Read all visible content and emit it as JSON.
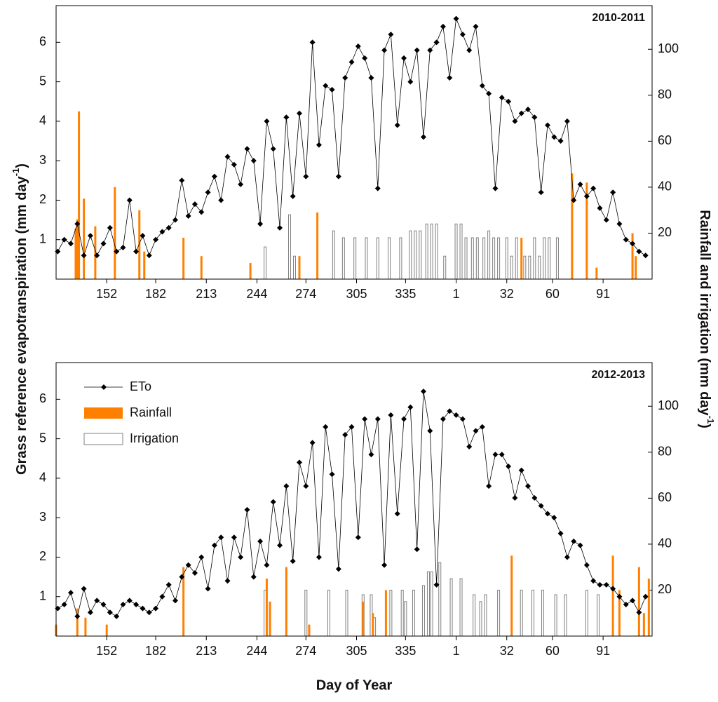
{
  "axis_labels": {
    "x": "Day of Year",
    "y": {
      "main": "Grass reference evapotranspiration (mm day",
      "sup": "-1",
      "end": ")"
    },
    "y2": {
      "main": "Rainfall and irrigation (mm day",
      "sup": "-1",
      "end": ")"
    }
  },
  "chart_data": [
    {
      "type": "combo",
      "panel_label": "2010-2011",
      "xlim": [
        121,
        486
      ],
      "ylim": [
        0,
        6.93
      ],
      "y2lim": [
        0,
        119
      ],
      "xticks": [
        152,
        182,
        213,
        244,
        274,
        305,
        335,
        {
          "value": 366,
          "label": "1"
        },
        {
          "value": 397,
          "label": "32"
        },
        {
          "value": 425,
          "label": "60"
        },
        {
          "value": 456,
          "label": "91"
        }
      ],
      "yticks": [
        1,
        2,
        3,
        4,
        5,
        6
      ],
      "y2ticks": [
        20,
        40,
        60,
        80,
        100
      ],
      "series": [
        {
          "type": "bar",
          "style": "outline",
          "color": "#808080",
          "axis": "y2",
          "x": [
            249,
            264,
            267,
            291,
            297,
            304,
            311,
            318,
            325,
            332,
            338,
            341,
            344,
            348,
            351,
            354,
            359,
            366,
            369,
            372,
            376,
            379,
            383,
            386,
            389,
            392,
            397,
            400,
            403,
            408,
            411,
            414,
            417,
            420,
            423,
            428
          ],
          "values": [
            14,
            28,
            10,
            21,
            18,
            18,
            18,
            18,
            18,
            18,
            21,
            21,
            21,
            24,
            24,
            24,
            10,
            24,
            24,
            18,
            18,
            18,
            18,
            21,
            18,
            18,
            18,
            10,
            18,
            10,
            10,
            18,
            10,
            18,
            18,
            18
          ]
        },
        {
          "type": "bar",
          "style": "fill",
          "color": "#ff8000",
          "axis": "y2",
          "x": [
            133,
            134,
            135,
            138,
            145,
            157,
            172,
            175,
            199,
            210,
            240,
            270,
            281,
            406,
            437,
            446,
            452,
            474,
            476
          ],
          "values": [
            22,
            26,
            73,
            35,
            23,
            40,
            30,
            12,
            18,
            10,
            7,
            10,
            29,
            18,
            46,
            42,
            5,
            20,
            10
          ]
        },
        {
          "type": "line",
          "color": "#000000",
          "x": [
            122,
            126,
            130,
            134,
            138,
            142,
            146,
            150,
            154,
            158,
            162,
            166,
            170,
            174,
            178,
            182,
            186,
            190,
            194,
            198,
            202,
            206,
            210,
            214,
            218,
            222,
            226,
            230,
            234,
            238,
            242,
            246,
            250,
            254,
            258,
            262,
            266,
            270,
            274,
            278,
            282,
            286,
            290,
            294,
            298,
            302,
            306,
            310,
            314,
            318,
            322,
            326,
            330,
            334,
            338,
            342,
            346,
            350,
            354,
            358,
            362,
            366,
            370,
            374,
            378,
            382,
            386,
            390,
            394,
            398,
            402,
            406,
            410,
            414,
            418,
            422,
            426,
            430,
            434,
            438,
            442,
            446,
            450,
            454,
            458,
            462,
            466,
            470,
            474,
            478,
            482
          ],
          "values": [
            0.7,
            1.0,
            0.9,
            1.4,
            0.6,
            1.1,
            0.6,
            0.9,
            1.3,
            0.7,
            0.8,
            2.0,
            0.7,
            1.1,
            0.6,
            1.0,
            1.2,
            1.3,
            1.5,
            2.5,
            1.6,
            1.9,
            1.7,
            2.2,
            2.6,
            2.0,
            3.1,
            2.9,
            2.4,
            3.3,
            3.0,
            1.4,
            4.0,
            3.3,
            1.3,
            4.1,
            2.1,
            4.2,
            2.6,
            6.0,
            3.4,
            4.9,
            4.8,
            2.6,
            5.1,
            5.5,
            5.9,
            5.6,
            5.1,
            2.3,
            5.8,
            6.2,
            3.9,
            5.6,
            5.0,
            5.8,
            3.6,
            5.8,
            6.0,
            6.4,
            5.1,
            6.6,
            6.2,
            5.8,
            6.4,
            4.9,
            4.7,
            2.3,
            4.6,
            4.5,
            4.0,
            4.2,
            4.3,
            4.1,
            2.2,
            3.9,
            3.6,
            3.5,
            4.0,
            2.0,
            2.4,
            2.1,
            2.3,
            1.8,
            1.5,
            2.2,
            1.4,
            1.0,
            0.9,
            0.7,
            0.6
          ]
        }
      ]
    },
    {
      "type": "combo",
      "panel_label": "2012-2013",
      "legend": "upper left",
      "xlim": [
        121,
        486
      ],
      "ylim": [
        0,
        6.93
      ],
      "y2lim": [
        0,
        119
      ],
      "xticks": [
        152,
        182,
        213,
        244,
        274,
        305,
        335,
        {
          "value": 366,
          "label": "1"
        },
        {
          "value": 397,
          "label": "32"
        },
        {
          "value": 425,
          "label": "60"
        },
        {
          "value": 456,
          "label": "91"
        }
      ],
      "yticks": [
        1,
        2,
        3,
        4,
        5,
        6
      ],
      "y2ticks": [
        20,
        40,
        60,
        80,
        100
      ],
      "series": [
        {
          "name": "Irrigation",
          "type": "bar",
          "style": "outline",
          "color": "#808080",
          "axis": "y2",
          "x": [
            249,
            274,
            288,
            299,
            309,
            314,
            316,
            326,
            333,
            335,
            340,
            346,
            349,
            351,
            356,
            363,
            369,
            377,
            381,
            384,
            392,
            406,
            413,
            419,
            427,
            433,
            446,
            453
          ],
          "values": [
            20,
            20,
            20,
            20,
            18,
            18,
            8,
            20,
            20,
            15,
            20,
            22,
            28,
            28,
            32,
            25,
            25,
            18,
            15,
            18,
            20,
            20,
            20,
            20,
            18,
            18,
            20,
            18
          ]
        },
        {
          "name": "Rainfall",
          "type": "bar",
          "style": "fill",
          "color": "#ff8000",
          "axis": "y2",
          "x": [
            121,
            134,
            139,
            152,
            199,
            250,
            252,
            262,
            276,
            309,
            315,
            323,
            400,
            462,
            466,
            478,
            481,
            484
          ],
          "values": [
            5,
            12,
            8,
            5,
            30,
            25,
            15,
            30,
            5,
            15,
            10,
            20,
            35,
            35,
            20,
            30,
            10,
            25
          ]
        },
        {
          "name": "ETo",
          "type": "line",
          "color": "#000000",
          "x": [
            122,
            126,
            130,
            134,
            138,
            142,
            146,
            150,
            154,
            158,
            162,
            166,
            170,
            174,
            178,
            182,
            186,
            190,
            194,
            198,
            202,
            206,
            210,
            214,
            218,
            222,
            226,
            230,
            234,
            238,
            242,
            246,
            250,
            254,
            258,
            262,
            266,
            270,
            274,
            278,
            282,
            286,
            290,
            294,
            298,
            302,
            306,
            310,
            314,
            318,
            322,
            326,
            330,
            334,
            338,
            342,
            346,
            350,
            354,
            358,
            362,
            366,
            370,
            374,
            378,
            382,
            386,
            390,
            394,
            398,
            402,
            406,
            410,
            414,
            418,
            422,
            426,
            430,
            434,
            438,
            442,
            446,
            450,
            454,
            458,
            462,
            466,
            470,
            474,
            478,
            482
          ],
          "values": [
            0.7,
            0.8,
            1.1,
            0.5,
            1.2,
            0.6,
            0.9,
            0.8,
            0.6,
            0.5,
            0.8,
            0.9,
            0.8,
            0.7,
            0.6,
            0.7,
            1.0,
            1.3,
            0.9,
            1.5,
            1.8,
            1.6,
            2.0,
            1.2,
            2.3,
            2.5,
            1.4,
            2.5,
            2.0,
            3.2,
            1.5,
            2.4,
            1.8,
            3.4,
            2.3,
            3.8,
            1.9,
            4.4,
            3.8,
            4.9,
            2.0,
            5.3,
            4.1,
            1.7,
            5.1,
            5.3,
            2.5,
            5.5,
            4.6,
            5.5,
            1.8,
            5.6,
            3.1,
            5.5,
            5.8,
            2.2,
            6.2,
            5.2,
            1.3,
            5.5,
            5.7,
            5.6,
            5.5,
            4.8,
            5.2,
            5.3,
            3.8,
            4.6,
            4.6,
            4.3,
            3.5,
            4.2,
            3.8,
            3.5,
            3.3,
            3.1,
            3.0,
            2.6,
            2.0,
            2.4,
            2.3,
            1.8,
            1.4,
            1.3,
            1.3,
            1.2,
            1.0,
            0.8,
            0.9,
            0.6,
            1.0
          ]
        }
      ]
    }
  ]
}
